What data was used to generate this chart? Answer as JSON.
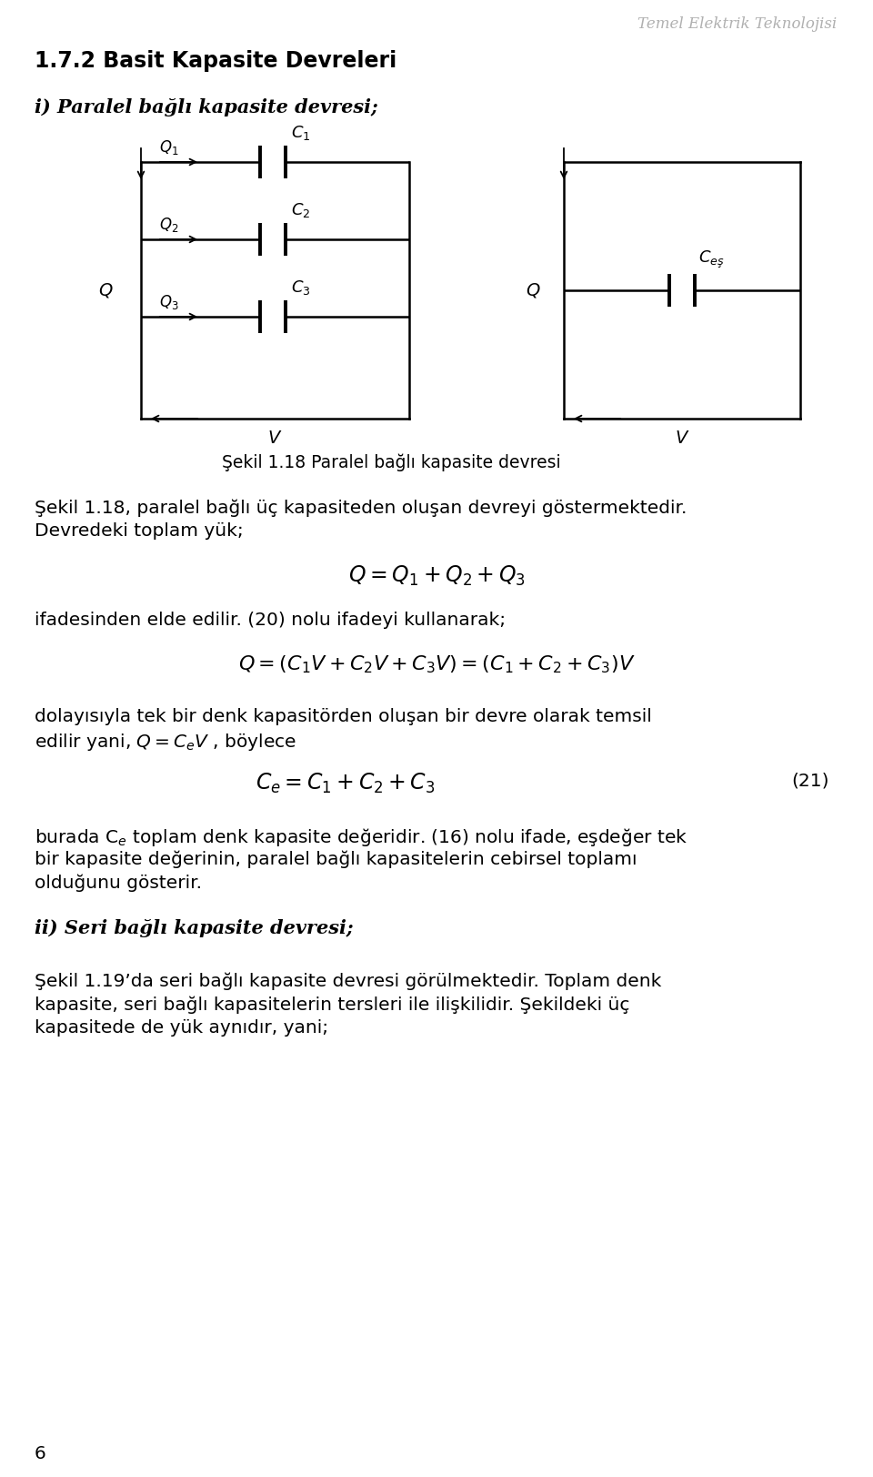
{
  "bg_color": "#ffffff",
  "header_text": "Temel Elektrik Teknolojisi",
  "title_bold": "1.7.2 Basit Kapasite Devreleri",
  "subtitle_italic": "i) Paralel bağlı kapasite devresi;",
  "fig_caption": "Şekil 1.18 Paralel bağlı kapasite devresi",
  "para1_a": "Şekil 1.18, paralel bağlı üç kapasiteden oluşan devreyi göstermektedir.",
  "para1_b": "Devredeki toplam yük;",
  "para2": "ifadesinden elde edilir. (20) nolu ifadeyi kullanarak;",
  "para3_a": "dolayısıyla tek bir denk kapasitörden oluşan bir devre olarak temsil",
  "para3_b": "edilir yani, $Q=C_{e}V$ , böylece",
  "eq3_num": "(21)",
  "para4_a": "burada C$_e$ toplam denk kapasite değeridir. (16) nolu ifade, eşdeğer tek",
  "para4_b": "bir kapasite değerinin, paralel bağlı kapasitelerin cebirsel toplamı",
  "para4_c": "olduğunu gösterir.",
  "subtitle2_italic": "ii) Seri bağlı kapasite devresi;",
  "para5_a": "Şekil 1.19’da seri bağlı kapasite devresi görülmektedir. Toplam denk",
  "para5_b": "kapasite, seri bağlı kapasitelerin tersleri ile ilişkilidir. Şekildeki üç",
  "para5_c": "kapasitede de yük aynıdır, yani;",
  "page_num": "6",
  "font_size_body": 14.5,
  "font_size_title": 17,
  "font_size_subtitle": 15,
  "font_size_header": 12,
  "font_size_eq": 15,
  "font_size_caption": 13.5
}
